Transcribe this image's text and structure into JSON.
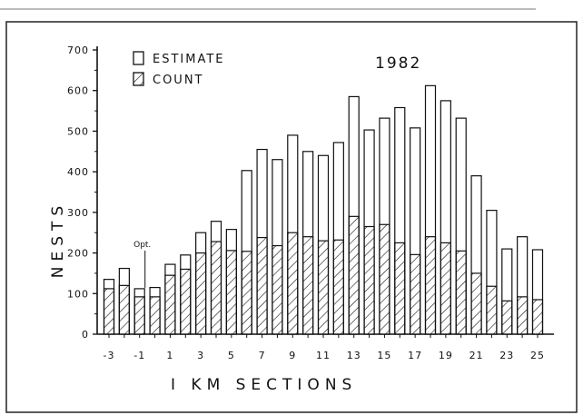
{
  "chart_data": {
    "type": "bar",
    "title": "1982",
    "xlabel": "I KM SECTIONS",
    "ylabel": "NESTS",
    "ylim": [
      0,
      700
    ],
    "yticks": [
      0,
      100,
      200,
      300,
      400,
      500,
      600,
      700
    ],
    "xtick_labels": [
      "-3",
      "-1",
      "1",
      "3",
      "5",
      "7",
      "9",
      "11",
      "13",
      "15",
      "17",
      "19",
      "21",
      "23",
      "25"
    ],
    "categories": [
      "-3",
      "-2",
      "-1",
      "0",
      "1",
      "2",
      "3",
      "4",
      "5",
      "6",
      "7",
      "8",
      "9",
      "10",
      "11",
      "12",
      "13",
      "14",
      "15",
      "16",
      "17",
      "18",
      "19",
      "20",
      "21",
      "22",
      "23",
      "24",
      "25"
    ],
    "series": [
      {
        "name": "ESTIMATE",
        "pattern": "open",
        "values": [
          135,
          162,
          112,
          115,
          172,
          195,
          250,
          278,
          258,
          403,
          455,
          430,
          490,
          450,
          440,
          472,
          585,
          503,
          532,
          558,
          508,
          612,
          575,
          532,
          390,
          305,
          210,
          240,
          208
        ]
      },
      {
        "name": "COUNT",
        "pattern": "hatched",
        "values": [
          112,
          120,
          92,
          92,
          145,
          160,
          200,
          228,
          206,
          204,
          238,
          218,
          250,
          240,
          230,
          232,
          290,
          265,
          270,
          225,
          196,
          240,
          225,
          205,
          150,
          118,
          82,
          92,
          85
        ]
      }
    ],
    "legend_position": "top-left",
    "annotations": [
      {
        "text": "Opt.",
        "at_category": "-1"
      }
    ],
    "grid": false
  }
}
